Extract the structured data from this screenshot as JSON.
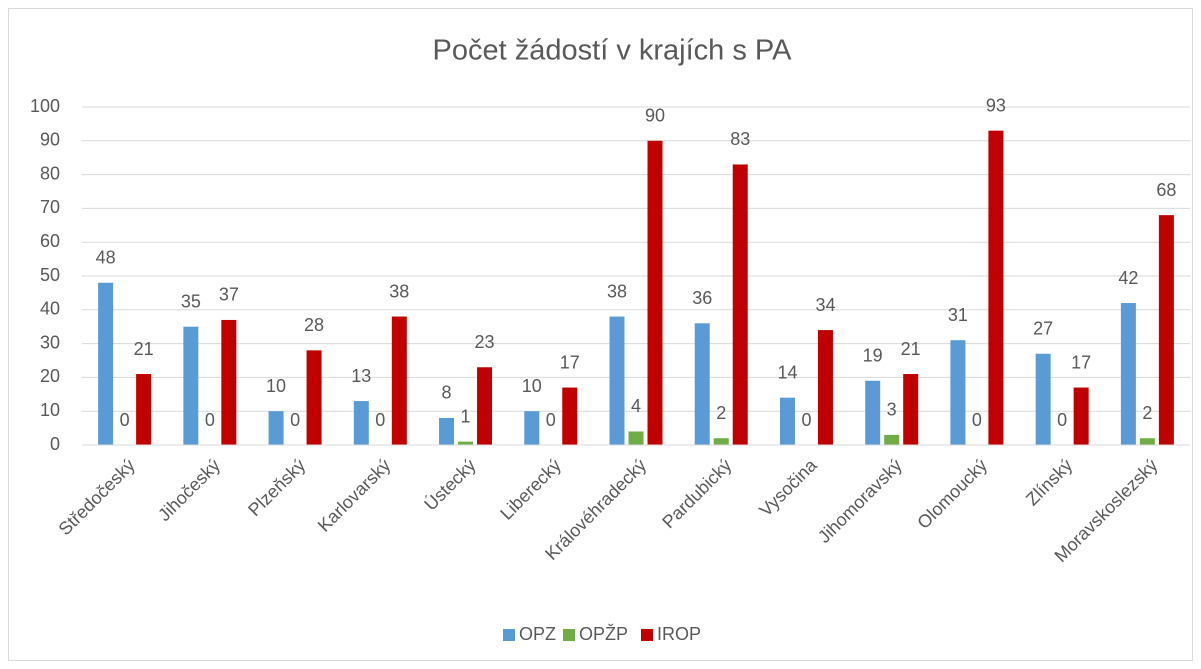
{
  "chart_data": {
    "type": "bar",
    "title": "Počet žádostí v krajích s PA",
    "categories": [
      "Středočeský",
      "Jihočeský",
      "Plzeňský",
      "Karlovarský",
      "Ústecký",
      "Liberecký",
      "Královéhradecký",
      "Pardubický",
      "Vysočina",
      "Jihomoravský",
      "Olomoucký",
      "Zlínský",
      "Moravskoslezský"
    ],
    "series": [
      {
        "name": "OPZ",
        "color": "#5b9bd5",
        "values": [
          48,
          35,
          10,
          13,
          8,
          10,
          38,
          36,
          14,
          19,
          31,
          27,
          42
        ]
      },
      {
        "name": "OPŽP",
        "color": "#70ad47",
        "values": [
          0,
          0,
          0,
          0,
          1,
          0,
          4,
          2,
          0,
          3,
          0,
          0,
          2
        ]
      },
      {
        "name": "IROP",
        "color": "#c00000",
        "values": [
          21,
          37,
          28,
          38,
          23,
          17,
          90,
          83,
          34,
          21,
          93,
          17,
          68
        ]
      }
    ],
    "ylim": [
      0,
      100
    ],
    "yticks": [
      0,
      10,
      20,
      30,
      40,
      50,
      60,
      70,
      80,
      90,
      100
    ],
    "grid": true,
    "legend": "bottom"
  }
}
